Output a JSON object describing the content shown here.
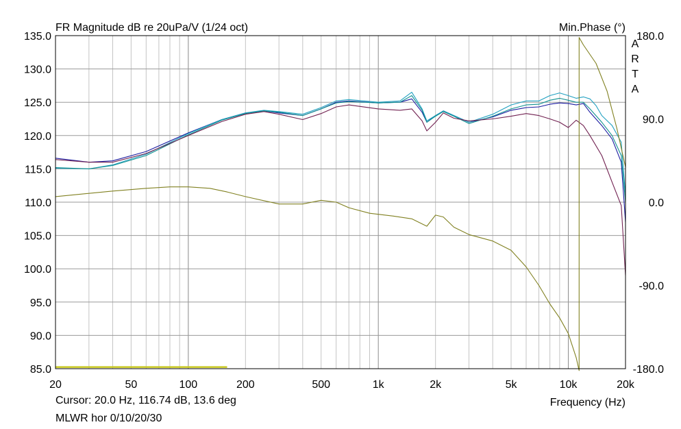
{
  "chart_data": {
    "type": "line",
    "title": "FR Magnitude dB re 20uPa/V (1/24 oct)",
    "right_title": "Min.Phase (°)",
    "watermark": "ARTA",
    "xlabel": "Frequency (Hz)",
    "x_scale": "log",
    "xlim": [
      20,
      20000
    ],
    "ylim": [
      85,
      135
    ],
    "y2lim": [
      -180,
      180
    ],
    "grid": true,
    "x_tick_labels": [
      {
        "x": 20,
        "label": "20"
      },
      {
        "x": 50,
        "label": "50"
      },
      {
        "x": 100,
        "label": "100"
      },
      {
        "x": 200,
        "label": "200"
      },
      {
        "x": 500,
        "label": "500"
      },
      {
        "x": 1000,
        "label": "1k"
      },
      {
        "x": 2000,
        "label": "2k"
      },
      {
        "x": 5000,
        "label": "5k"
      },
      {
        "x": 10000,
        "label": "10k"
      },
      {
        "x": 20000,
        "label": "20k"
      }
    ],
    "y_tick_labels": [
      {
        "y": 135,
        "label": "135.0"
      },
      {
        "y": 130,
        "label": "130.0"
      },
      {
        "y": 125,
        "label": "125.0"
      },
      {
        "y": 120,
        "label": "120.0"
      },
      {
        "y": 115,
        "label": "115.0"
      },
      {
        "y": 110,
        "label": "110.0"
      },
      {
        "y": 105,
        "label": "105.0"
      },
      {
        "y": 100,
        "label": "100.0"
      },
      {
        "y": 95,
        "label": "95.0"
      },
      {
        "y": 90,
        "label": "90.0"
      },
      {
        "y": 85,
        "label": "85.0"
      }
    ],
    "y2_tick_labels": [
      {
        "y": 180,
        "label": "180.0"
      },
      {
        "y": 90,
        "label": "90.0"
      },
      {
        "y": 0,
        "label": "0.0"
      },
      {
        "y": -90,
        "label": "-90.0"
      },
      {
        "y": -180,
        "label": "-180.0"
      }
    ],
    "series": [
      {
        "axis": "left",
        "color": "#1a1aa0",
        "points": [
          [
            20,
            116.6
          ],
          [
            30,
            116.0
          ],
          [
            40,
            116.2
          ],
          [
            60,
            117.6
          ],
          [
            100,
            120.4
          ],
          [
            150,
            122.4
          ],
          [
            200,
            123.4
          ],
          [
            250,
            123.7
          ],
          [
            300,
            123.4
          ],
          [
            400,
            123.0
          ],
          [
            500,
            124.0
          ],
          [
            600,
            125.0
          ],
          [
            700,
            125.2
          ],
          [
            1000,
            124.9
          ],
          [
            1300,
            125.0
          ],
          [
            1500,
            125.5
          ],
          [
            1700,
            123.5
          ],
          [
            1800,
            122.0
          ],
          [
            2000,
            123.0
          ],
          [
            2200,
            123.7
          ],
          [
            2500,
            123.0
          ],
          [
            3000,
            122.0
          ],
          [
            4000,
            122.8
          ],
          [
            5000,
            123.8
          ],
          [
            6000,
            124.2
          ],
          [
            7000,
            124.3
          ],
          [
            8000,
            124.7
          ],
          [
            9000,
            124.9
          ],
          [
            10000,
            124.8
          ],
          [
            11000,
            124.6
          ],
          [
            12000,
            124.8
          ],
          [
            13000,
            123.5
          ],
          [
            15000,
            121.5
          ],
          [
            17000,
            119.5
          ],
          [
            19000,
            116.0
          ],
          [
            20000,
            107.0
          ]
        ]
      },
      {
        "axis": "left",
        "color": "#20a0c0",
        "points": [
          [
            20,
            115.1
          ],
          [
            30,
            115.0
          ],
          [
            40,
            115.6
          ],
          [
            60,
            117.2
          ],
          [
            100,
            120.3
          ],
          [
            150,
            122.4
          ],
          [
            200,
            123.4
          ],
          [
            250,
            123.8
          ],
          [
            300,
            123.6
          ],
          [
            400,
            123.2
          ],
          [
            500,
            124.2
          ],
          [
            600,
            125.2
          ],
          [
            700,
            125.4
          ],
          [
            1000,
            125.0
          ],
          [
            1300,
            125.2
          ],
          [
            1500,
            126.5
          ],
          [
            1700,
            124.0
          ],
          [
            1800,
            122.2
          ],
          [
            2000,
            123.0
          ],
          [
            2200,
            123.7
          ],
          [
            2500,
            123.0
          ],
          [
            3000,
            122.0
          ],
          [
            4000,
            123.2
          ],
          [
            5000,
            124.6
          ],
          [
            6000,
            125.2
          ],
          [
            7000,
            125.2
          ],
          [
            8000,
            126.0
          ],
          [
            9000,
            126.4
          ],
          [
            10000,
            126.0
          ],
          [
            11000,
            125.6
          ],
          [
            12000,
            125.8
          ],
          [
            13000,
            125.5
          ],
          [
            14000,
            124.5
          ],
          [
            15000,
            123.0
          ],
          [
            17000,
            121.5
          ],
          [
            19000,
            119.0
          ],
          [
            20000,
            111.0
          ]
        ]
      },
      {
        "axis": "left",
        "color": "#109090",
        "points": [
          [
            20,
            115.2
          ],
          [
            30,
            115.0
          ],
          [
            40,
            115.5
          ],
          [
            60,
            117.0
          ],
          [
            100,
            120.1
          ],
          [
            150,
            122.3
          ],
          [
            200,
            123.3
          ],
          [
            250,
            123.7
          ],
          [
            300,
            123.5
          ],
          [
            400,
            123.0
          ],
          [
            500,
            124.0
          ],
          [
            600,
            124.9
          ],
          [
            700,
            125.1
          ],
          [
            1000,
            124.9
          ],
          [
            1300,
            125.0
          ],
          [
            1500,
            126.0
          ],
          [
            1700,
            123.8
          ],
          [
            1800,
            122.0
          ],
          [
            2000,
            122.9
          ],
          [
            2200,
            123.6
          ],
          [
            2500,
            122.9
          ],
          [
            3000,
            121.8
          ],
          [
            4000,
            122.9
          ],
          [
            5000,
            124.0
          ],
          [
            6000,
            124.6
          ],
          [
            7000,
            124.7
          ],
          [
            8000,
            125.3
          ],
          [
            9000,
            125.6
          ],
          [
            10000,
            125.3
          ],
          [
            11000,
            125.0
          ],
          [
            12000,
            125.0
          ],
          [
            13000,
            124.0
          ],
          [
            15000,
            122.0
          ],
          [
            17000,
            120.0
          ],
          [
            19000,
            117.0
          ],
          [
            20000,
            110.0
          ]
        ]
      },
      {
        "axis": "left",
        "color": "#702050",
        "points": [
          [
            20,
            116.4
          ],
          [
            30,
            116.0
          ],
          [
            40,
            116.0
          ],
          [
            60,
            117.3
          ],
          [
            100,
            120.0
          ],
          [
            150,
            122.1
          ],
          [
            200,
            123.2
          ],
          [
            250,
            123.6
          ],
          [
            300,
            123.2
          ],
          [
            400,
            122.4
          ],
          [
            500,
            123.3
          ],
          [
            600,
            124.3
          ],
          [
            700,
            124.6
          ],
          [
            1000,
            124.0
          ],
          [
            1300,
            123.8
          ],
          [
            1500,
            124.0
          ],
          [
            1700,
            122.2
          ],
          [
            1800,
            120.7
          ],
          [
            2000,
            122.0
          ],
          [
            2200,
            123.4
          ],
          [
            2500,
            122.6
          ],
          [
            3000,
            122.2
          ],
          [
            4000,
            122.5
          ],
          [
            5000,
            122.9
          ],
          [
            6000,
            123.3
          ],
          [
            7000,
            123.0
          ],
          [
            8000,
            122.5
          ],
          [
            9000,
            122.0
          ],
          [
            10000,
            121.2
          ],
          [
            11000,
            122.3
          ],
          [
            12000,
            121.5
          ],
          [
            13000,
            120.0
          ],
          [
            15000,
            117.0
          ],
          [
            17000,
            113.0
          ],
          [
            19000,
            109.5
          ],
          [
            20000,
            99.0
          ]
        ]
      },
      {
        "axis": "right",
        "color": "#808020",
        "points": [
          [
            20,
            6
          ],
          [
            40,
            12
          ],
          [
            60,
            15
          ],
          [
            80,
            16.5
          ],
          [
            100,
            16.5
          ],
          [
            130,
            15
          ],
          [
            160,
            11
          ],
          [
            200,
            6
          ],
          [
            300,
            -2
          ],
          [
            400,
            -2
          ],
          [
            500,
            2
          ],
          [
            600,
            0
          ],
          [
            700,
            -6
          ],
          [
            900,
            -12
          ],
          [
            1200,
            -15
          ],
          [
            1500,
            -18
          ],
          [
            1800,
            -26
          ],
          [
            2000,
            -14
          ],
          [
            2200,
            -16
          ],
          [
            2500,
            -27
          ],
          [
            3000,
            -35
          ],
          [
            4000,
            -42
          ],
          [
            5000,
            -52
          ],
          [
            6000,
            -70
          ],
          [
            7000,
            -90
          ],
          [
            8000,
            -110
          ],
          [
            9000,
            -125
          ],
          [
            10000,
            -142
          ],
          [
            11000,
            -168
          ],
          [
            11400,
            -182
          ],
          [
            11400,
            178
          ],
          [
            12000,
            170
          ],
          [
            14000,
            150
          ],
          [
            16000,
            120
          ],
          [
            18000,
            80
          ],
          [
            20000,
            38
          ]
        ]
      },
      {
        "axis": "left",
        "color": "#c8c820",
        "points": [
          [
            20,
            85.25
          ],
          [
            160,
            85.25
          ]
        ]
      }
    ]
  },
  "footer": {
    "cursor_readout": "Cursor: 20.0 Hz, 116.74 dB, 13.6 deg",
    "measurement_label": "MLWR hor 0/10/20/30"
  }
}
